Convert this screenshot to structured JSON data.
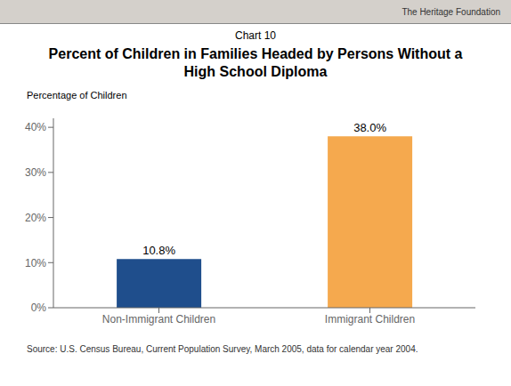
{
  "chart_data": {
    "type": "bar",
    "subtitle": "Chart 10",
    "title": "Percent of Children in Families Headed by Persons Without a\nHigh School Diploma",
    "ylabel": "Percentage of Children",
    "categories": [
      "Non-Immigrant Children",
      "Immigrant Children"
    ],
    "values": [
      10.8,
      38.0
    ],
    "value_labels": [
      "10.8%",
      "38.0%"
    ],
    "data_labels": true,
    "colors": [
      "#1F4E8C",
      "#F5A94E"
    ],
    "ylim": [
      0,
      42
    ],
    "yticks": [
      {
        "value": 0,
        "label": "0%"
      },
      {
        "value": 10,
        "label": "10%"
      },
      {
        "value": 20,
        "label": "20%"
      },
      {
        "value": 30,
        "label": "30%"
      },
      {
        "value": 40,
        "label": "40%"
      }
    ],
    "grid": false,
    "annotations": [
      "The Heritage Foundation",
      "Source: U.S. Census Bureau, Current Population Survey, March 2005, data for calendar year 2004."
    ]
  }
}
